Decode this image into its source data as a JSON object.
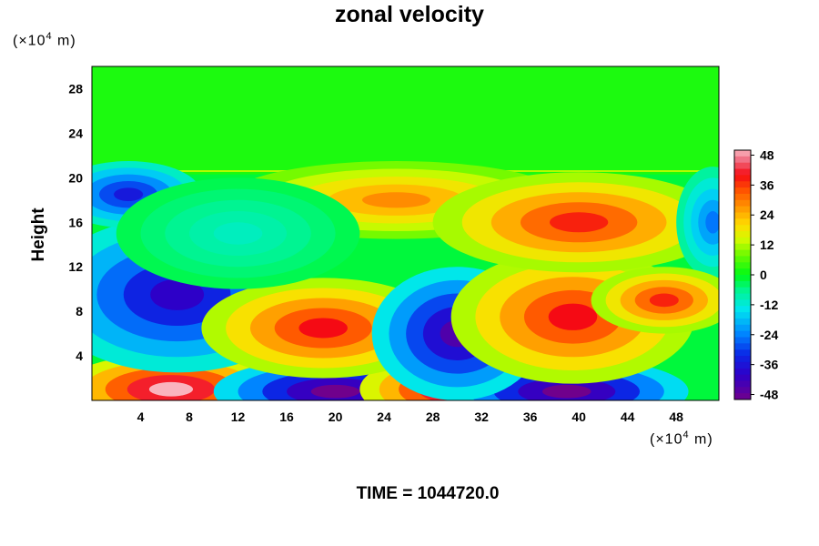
{
  "chart_data": {
    "type": "heatmap",
    "title": "zonal velocity",
    "ylabel": "Height",
    "xunit_prefix": "(×10",
    "xunit_exp": "4",
    "xunit_suffix": " m)",
    "yunit_prefix": "(×10",
    "yunit_exp": "4",
    "yunit_suffix": " m)",
    "x_ticks": [
      "4",
      "8",
      "12",
      "16",
      "20",
      "24",
      "28",
      "32",
      "36",
      "40",
      "44",
      "48"
    ],
    "y_ticks": [
      "4",
      "8",
      "12",
      "16",
      "20",
      "24",
      "28"
    ],
    "xlim": [
      0,
      51.5
    ],
    "ylim": [
      0,
      30
    ],
    "colorbar": {
      "ticks": [
        "48",
        "36",
        "24",
        "12",
        "0",
        "-12",
        "-24",
        "-36",
        "-48"
      ],
      "range": [
        -50,
        50
      ]
    },
    "background_value": 2,
    "features": [
      {
        "x": 6.5,
        "y": 1.0,
        "value": 50
      },
      {
        "x": 20.0,
        "y": 0.8,
        "value": -50
      },
      {
        "x": 30.0,
        "y": 1.0,
        "value": 50
      },
      {
        "x": 39.0,
        "y": 0.8,
        "value": -50
      },
      {
        "x": 7.0,
        "y": 9.5,
        "value": -40
      },
      {
        "x": 19.0,
        "y": 6.5,
        "value": 40
      },
      {
        "x": 30.0,
        "y": 6.0,
        "value": -45
      },
      {
        "x": 39.5,
        "y": 7.5,
        "value": 40
      },
      {
        "x": 25.0,
        "y": 18.0,
        "value": 28
      },
      {
        "x": 40.0,
        "y": 16.0,
        "value": 38
      },
      {
        "x": 3.0,
        "y": 18.5,
        "value": -35
      },
      {
        "x": 51.0,
        "y": 16.0,
        "value": -25
      },
      {
        "x": 47.0,
        "y": 9.0,
        "value": 38
      },
      {
        "x": 12.0,
        "y": 15.0,
        "value": -10
      }
    ],
    "grid": false,
    "legend": "right"
  },
  "footer": {
    "time_label": "TIME = 1044720.0"
  }
}
